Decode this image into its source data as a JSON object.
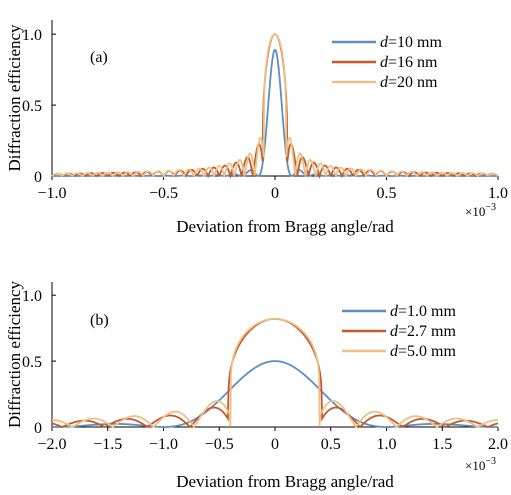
{
  "figure": {
    "colors": {
      "blue": "#5b8fc4",
      "red": "#c45a2c",
      "light": "#eec085"
    }
  },
  "chart_data": [
    {
      "type": "line",
      "panel_label": "(a)",
      "xlabel": "Deviation from Bragg angle/rad",
      "ylabel": "Diffraction efficiency",
      "x_multiplier": "×10",
      "x_multiplier_exp": "−3",
      "xlim": [
        -1.0,
        1.0
      ],
      "ylim": [
        0,
        1.1
      ],
      "xticks": [
        -1.0,
        -0.5,
        0,
        0.5,
        1.0
      ],
      "xtick_labels": [
        "−1.0",
        "−0.5",
        "0",
        "0.5",
        "1.0"
      ],
      "yticks": [
        0,
        0.5,
        1.0
      ],
      "ytick_labels": [
        "0",
        "0.5",
        "1.0"
      ],
      "legend_position": "top-right",
      "series": [
        {
          "name_italic": "d",
          "name_rest": "=10 mm",
          "color": "#5b8fc4",
          "peak": 0.89,
          "halfwidth": 0.075,
          "lobes": 0.09,
          "plateau": 0
        },
        {
          "name_italic": "d",
          "name_rest": "=16 nm",
          "color": "#c45a2c",
          "peak": 1.0,
          "halfwidth": 0.055,
          "lobes": 0.15,
          "plateau": 0.5
        },
        {
          "name_italic": "d",
          "name_rest": "=20 nm",
          "color": "#eec085",
          "peak": 1.0,
          "halfwidth": 0.05,
          "lobes": 0.18,
          "plateau": 0.8
        }
      ]
    },
    {
      "type": "line",
      "panel_label": "(b)",
      "xlabel": "Deviation from Bragg angle/rad",
      "ylabel": "Diffraction efficiency",
      "x_multiplier": "×10",
      "x_multiplier_exp": "−3",
      "xlim": [
        -2.0,
        2.0
      ],
      "ylim": [
        0,
        1.1
      ],
      "xticks": [
        -2.0,
        -1.5,
        -1.0,
        -0.5,
        0,
        0.5,
        1.0,
        1.5,
        2.0
      ],
      "xtick_labels": [
        "−2.0",
        "−1.5",
        "−1.0",
        "−0.5",
        "0",
        "0.5",
        "1.0",
        "1.5",
        "2.0"
      ],
      "yticks": [
        0,
        0.5,
        1.0
      ],
      "ytick_labels": [
        "0",
        "0.5",
        "1.0"
      ],
      "legend_position": "top-right",
      "series": [
        {
          "name_italic": "d",
          "name_rest": "=1.0 mm",
          "color": "#5b8fc4",
          "peak": 0.5,
          "halfwidth": 1.0,
          "lobes": 0.05,
          "plateau": 0
        },
        {
          "name_italic": "d",
          "name_rest": "=2.7 mm",
          "color": "#c45a2c",
          "peak": 0.82,
          "halfwidth": 0.42,
          "lobes": 0.12,
          "plateau": 0.6
        },
        {
          "name_italic": "d",
          "name_rest": "=5.0 mm",
          "color": "#eec085",
          "peak": 0.82,
          "halfwidth": 0.4,
          "lobes": 0.16,
          "plateau": 0.85
        }
      ]
    }
  ]
}
